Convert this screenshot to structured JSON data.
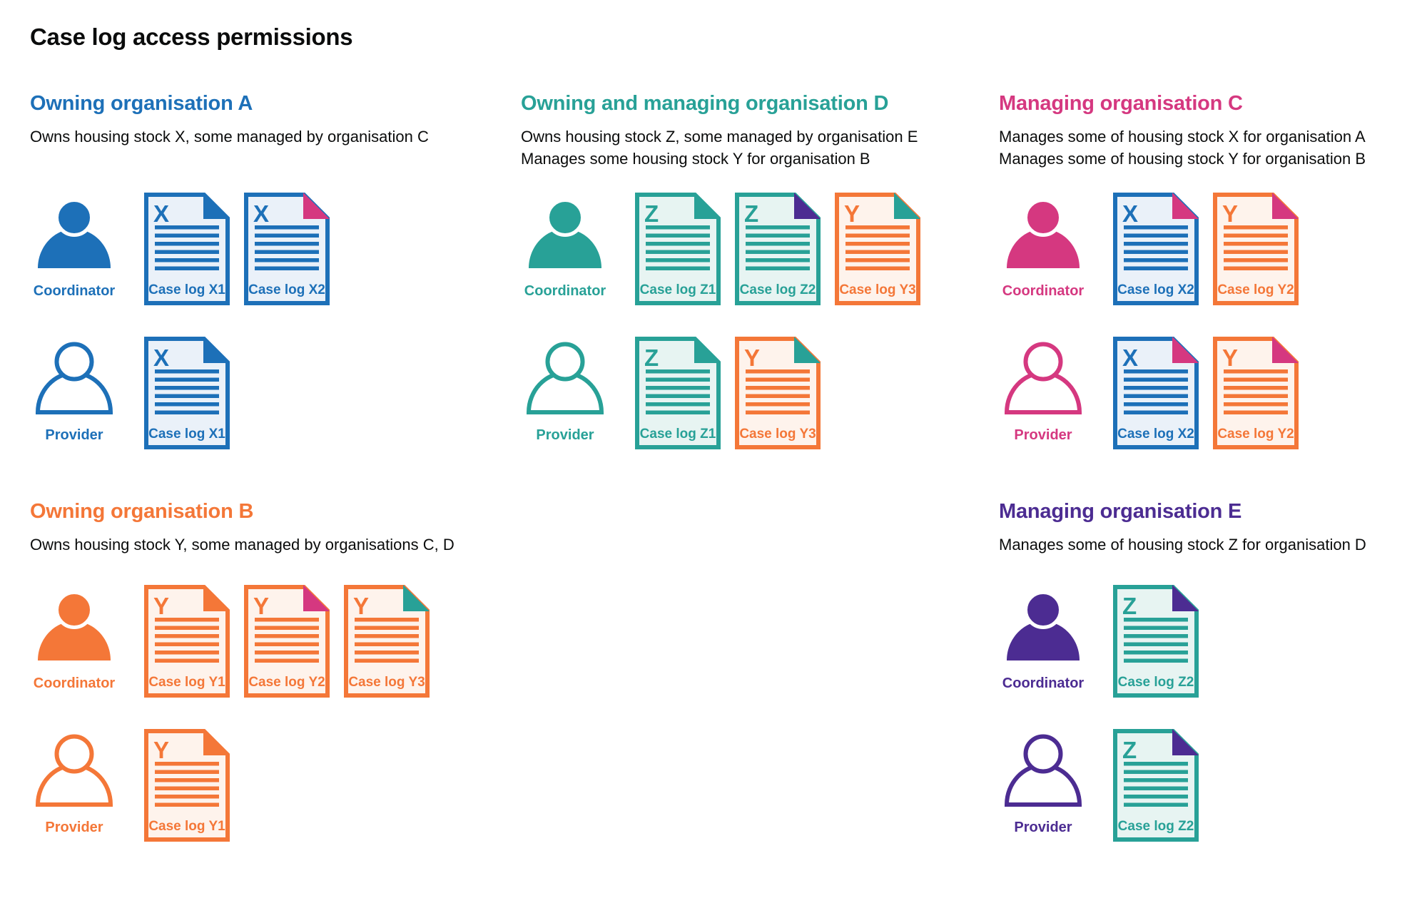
{
  "title": "Case log access permissions",
  "colors": {
    "blue": "#1d70b8",
    "teal": "#28a197",
    "pink": "#d53880",
    "orange": "#f47738",
    "purple": "#4c2c92",
    "text": "#0b0c0c",
    "tint_blue": "#eaf1f9",
    "tint_teal": "#e7f4f2",
    "tint_orange": "#fef3ec"
  },
  "sections": [
    {
      "id": "A",
      "grid_row": 1,
      "col": 1,
      "color": "blue",
      "heading": "Owning organisation A",
      "description": [
        "Owns housing stock X, some managed by organisation C"
      ],
      "rows": [
        {
          "role": "Coordinator",
          "person": "filled",
          "docs": [
            {
              "letter": "X",
              "label": "Case log X1",
              "doc_color": "blue",
              "fold_color": "blue"
            },
            {
              "letter": "X",
              "label": "Case log X2",
              "doc_color": "blue",
              "fold_color": "pink"
            }
          ]
        },
        {
          "role": "Provider",
          "person": "outline",
          "docs": [
            {
              "letter": "X",
              "label": "Case log X1",
              "doc_color": "blue",
              "fold_color": "blue"
            }
          ]
        }
      ]
    },
    {
      "id": "D",
      "grid_row": 1,
      "col": 2,
      "color": "teal",
      "heading": "Owning and managing organisation D",
      "description": [
        "Owns housing stock Z, some managed by organisation E",
        "Manages some housing stock Y for organisation B"
      ],
      "rows": [
        {
          "role": "Coordinator",
          "person": "filled",
          "docs": [
            {
              "letter": "Z",
              "label": "Case log Z1",
              "doc_color": "teal",
              "fold_color": "teal"
            },
            {
              "letter": "Z",
              "label": "Case log Z2",
              "doc_color": "teal",
              "fold_color": "purple"
            },
            {
              "letter": "Y",
              "label": "Case log Y3",
              "doc_color": "orange",
              "fold_color": "teal"
            }
          ]
        },
        {
          "role": "Provider",
          "person": "outline",
          "docs": [
            {
              "letter": "Z",
              "label": "Case log Z1",
              "doc_color": "teal",
              "fold_color": "teal"
            },
            {
              "letter": "Y",
              "label": "Case log Y3",
              "doc_color": "orange",
              "fold_color": "teal"
            }
          ]
        }
      ]
    },
    {
      "id": "C",
      "grid_row": 1,
      "col": 3,
      "color": "pink",
      "heading": "Managing organisation C",
      "description": [
        "Manages some of housing stock X for organisation A",
        "Manages some of housing stock Y for organisation B"
      ],
      "rows": [
        {
          "role": "Coordinator",
          "person": "filled",
          "docs": [
            {
              "letter": "X",
              "label": "Case log X2",
              "doc_color": "blue",
              "fold_color": "pink"
            },
            {
              "letter": "Y",
              "label": "Case log Y2",
              "doc_color": "orange",
              "fold_color": "pink"
            }
          ]
        },
        {
          "role": "Provider",
          "person": "outline",
          "docs": [
            {
              "letter": "X",
              "label": "Case log X2",
              "doc_color": "blue",
              "fold_color": "pink"
            },
            {
              "letter": "Y",
              "label": "Case log Y2",
              "doc_color": "orange",
              "fold_color": "pink"
            }
          ]
        }
      ]
    },
    {
      "id": "B",
      "grid_row": 2,
      "col": 1,
      "color": "orange",
      "heading": "Owning organisation B",
      "description": [
        "Owns housing stock Y, some managed by organisations C, D"
      ],
      "rows": [
        {
          "role": "Coordinator",
          "person": "filled",
          "docs": [
            {
              "letter": "Y",
              "label": "Case log Y1",
              "doc_color": "orange",
              "fold_color": "orange"
            },
            {
              "letter": "Y",
              "label": "Case log Y2",
              "doc_color": "orange",
              "fold_color": "pink"
            },
            {
              "letter": "Y",
              "label": "Case log Y3",
              "doc_color": "orange",
              "fold_color": "teal"
            }
          ]
        },
        {
          "role": "Provider",
          "person": "outline",
          "docs": [
            {
              "letter": "Y",
              "label": "Case log Y1",
              "doc_color": "orange",
              "fold_color": "orange"
            }
          ]
        }
      ]
    },
    {
      "id": "E",
      "grid_row": 2,
      "col": 3,
      "color": "purple",
      "heading": "Managing organisation E",
      "description": [
        "Manages some of housing stock Z for organisation D"
      ],
      "rows": [
        {
          "role": "Coordinator",
          "person": "filled",
          "docs": [
            {
              "letter": "Z",
              "label": "Case log Z2",
              "doc_color": "teal",
              "fold_color": "purple"
            }
          ]
        },
        {
          "role": "Provider",
          "person": "outline",
          "docs": [
            {
              "letter": "Z",
              "label": "Case log Z2",
              "doc_color": "teal",
              "fold_color": "purple"
            }
          ]
        }
      ]
    }
  ]
}
